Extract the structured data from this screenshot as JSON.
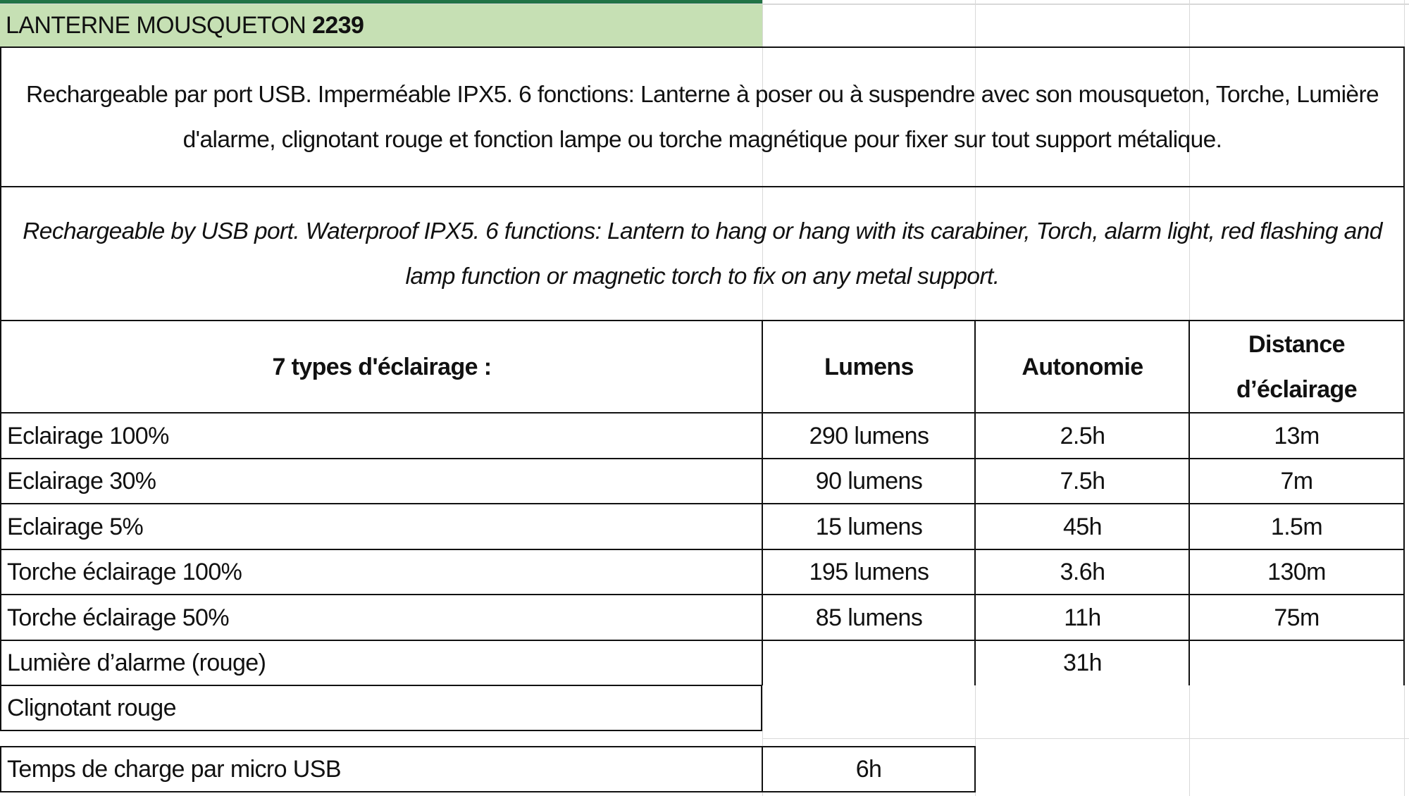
{
  "title": {
    "prefix": "LANTERNE MOUSQUETON ",
    "number": "2239"
  },
  "colors": {
    "title_fill": "#c6e0b4",
    "header_bar": "#217346"
  },
  "description_fr": "Rechargeable par port USB. Imperméable IPX5. 6 fonctions:  Lanterne à poser ou à suspendre avec son mousqueton, Torche, Lumière d'alarme, clignotant rouge et fonction lampe ou torche magnétique pour fixer sur tout support métalique.",
  "description_en": "Rechargeable by USB port. Waterproof IPX5. 6 functions: Lantern to hang or hang with its carabiner, Torch, alarm light, red flashing and lamp function or magnetic torch to fix on any metal support.",
  "table": {
    "headers": [
      "7 types d'éclairage :",
      "Lumens",
      "Autonomie",
      "Distance d’éclairage"
    ],
    "rows": [
      [
        "Eclairage 100%",
        "290 lumens",
        "2.5h",
        "13m"
      ],
      [
        "Eclairage 30%",
        "90 lumens",
        "7.5h",
        "7m"
      ],
      [
        "Eclairage 5%",
        "15 lumens",
        "45h",
        "1.5m"
      ],
      [
        "Torche éclairage 100%",
        "195 lumens",
        "3.6h",
        "130m"
      ],
      [
        "Torche éclairage 50%",
        "85 lumens",
        "11h",
        "75m"
      ],
      [
        "Lumière d’alarme (rouge)",
        "",
        "31h",
        ""
      ],
      [
        "Clignotant rouge"
      ]
    ]
  },
  "charge": {
    "label": "Temps de charge par micro USB",
    "value": "6h"
  }
}
